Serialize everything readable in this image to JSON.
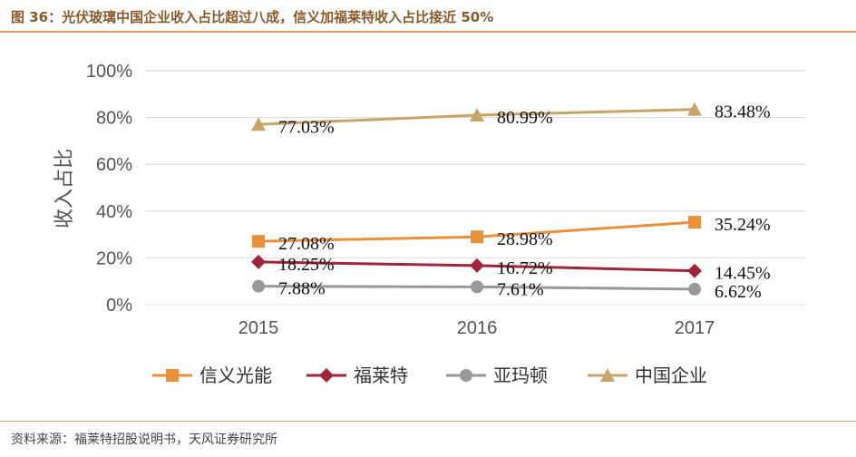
{
  "header": {
    "title": "图 36：光伏玻璃中国企业收入占比超过八成，信义加福莱特收入占比接近 50%"
  },
  "footer": {
    "source": "资料来源：福莱特招股说明书，天风证券研究所"
  },
  "chart_data": {
    "type": "line",
    "title": "",
    "xlabel": "",
    "ylabel": "收入占比",
    "categories": [
      "2015",
      "2016",
      "2017"
    ],
    "ylim": [
      0,
      100
    ],
    "yticks": [
      "0%",
      "20%",
      "40%",
      "60%",
      "80%",
      "100%"
    ],
    "grid": true,
    "legend_position": "bottom",
    "series": [
      {
        "name": "信义光能",
        "values": [
          27.08,
          28.98,
          35.24
        ],
        "labels": [
          "27.08%",
          "28.98%",
          "35.24%"
        ],
        "color": "#e8913a",
        "marker": "square"
      },
      {
        "name": "福莱特",
        "values": [
          18.25,
          16.72,
          14.45
        ],
        "labels": [
          "18.25%",
          "16.72%",
          "14.45%"
        ],
        "color": "#a0253a",
        "marker": "diamond"
      },
      {
        "name": "亚玛顿",
        "values": [
          7.88,
          7.61,
          6.62
        ],
        "labels": [
          "7.88%",
          "7.61%",
          "6.62%"
        ],
        "color": "#999999",
        "marker": "circle"
      },
      {
        "name": "中国企业",
        "values": [
          77.03,
          80.99,
          83.48
        ],
        "labels": [
          "77.03%",
          "80.99%",
          "83.48%"
        ],
        "color": "#c8a46a",
        "marker": "triangle"
      }
    ]
  }
}
